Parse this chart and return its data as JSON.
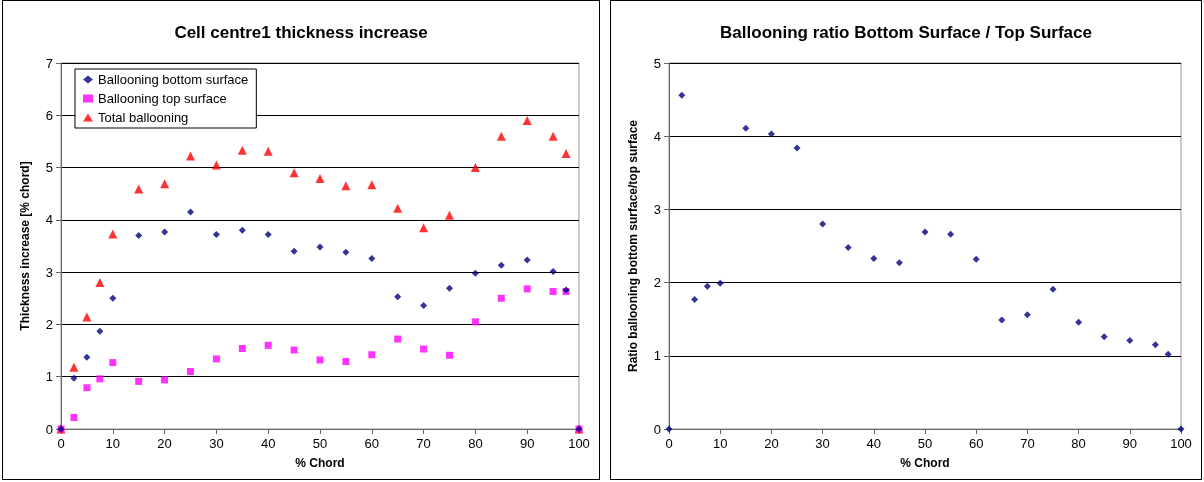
{
  "chart_data": [
    {
      "type": "scatter",
      "title": "Cell centre1 thickness increase",
      "xlabel": "% Chord",
      "ylabel": "Thickness increase [% chord]",
      "x": [
        0,
        2.5,
        5,
        7.5,
        10,
        15,
        20,
        25,
        30,
        35,
        40,
        45,
        50,
        55,
        60,
        65,
        70,
        75,
        80,
        85,
        90,
        95,
        97.5,
        100
      ],
      "xlim": [
        0,
        100
      ],
      "xticks": [
        0,
        10,
        20,
        30,
        40,
        50,
        60,
        70,
        80,
        90,
        100
      ],
      "ylim": [
        0,
        7
      ],
      "yticks": [
        0,
        1,
        2,
        3,
        4,
        5,
        6,
        7
      ],
      "grid": "y",
      "legend": "top left",
      "series": [
        {
          "name": "Ballooning bottom surface",
          "color": "#000080",
          "marker": "diamond",
          "values": [
            0,
            0.97,
            1.37,
            1.87,
            2.5,
            3.7,
            3.77,
            4.15,
            3.72,
            3.8,
            3.72,
            3.4,
            3.48,
            3.38,
            3.26,
            2.53,
            2.36,
            2.69,
            2.98,
            3.13,
            3.23,
            3.01,
            2.66,
            0
          ]
        },
        {
          "name": "Ballooning top surface",
          "color": "#ff00ff",
          "marker": "square",
          "values": [
            0,
            0.22,
            0.79,
            0.96,
            1.27,
            0.91,
            0.94,
            1.1,
            1.34,
            1.54,
            1.6,
            1.51,
            1.32,
            1.29,
            1.42,
            1.72,
            1.53,
            1.41,
            2.05,
            2.5,
            2.68,
            2.63,
            2.63,
            0
          ]
        },
        {
          "name": "Total ballooning",
          "color": "#ff0000",
          "marker": "triangle",
          "values": [
            0,
            1.18,
            2.14,
            2.8,
            3.73,
            4.59,
            4.69,
            5.22,
            5.05,
            5.33,
            5.31,
            4.9,
            4.79,
            4.65,
            4.67,
            4.22,
            3.85,
            4.09,
            5.0,
            5.6,
            5.9,
            5.6,
            5.27,
            0
          ]
        }
      ]
    },
    {
      "type": "scatter",
      "title": "Ballooning ratio Bottom Surface / Top Surface",
      "xlabel": "% Chord",
      "ylabel": "Ratio ballooning bottom surface/top surface",
      "x": [
        0,
        2.5,
        5,
        7.5,
        10,
        15,
        20,
        25,
        30,
        35,
        40,
        45,
        50,
        55,
        60,
        65,
        70,
        75,
        80,
        85,
        90,
        95,
        97.5,
        100
      ],
      "xlim": [
        0,
        100
      ],
      "xticks": [
        0,
        10,
        20,
        30,
        40,
        50,
        60,
        70,
        80,
        90,
        100
      ],
      "ylim": [
        0,
        5
      ],
      "yticks": [
        0,
        1,
        2,
        3,
        4,
        5
      ],
      "grid": "y",
      "legend": false,
      "marker": "diamond",
      "series": [
        {
          "color": "#000080",
          "values": [
            0,
            4.56,
            1.77,
            1.95,
            1.99,
            4.11,
            4.03,
            3.84,
            2.8,
            2.48,
            2.33,
            2.27,
            2.69,
            2.66,
            2.32,
            1.49,
            1.56,
            1.91,
            1.46,
            1.26,
            1.21,
            1.15,
            1.02,
            0
          ]
        }
      ]
    }
  ]
}
